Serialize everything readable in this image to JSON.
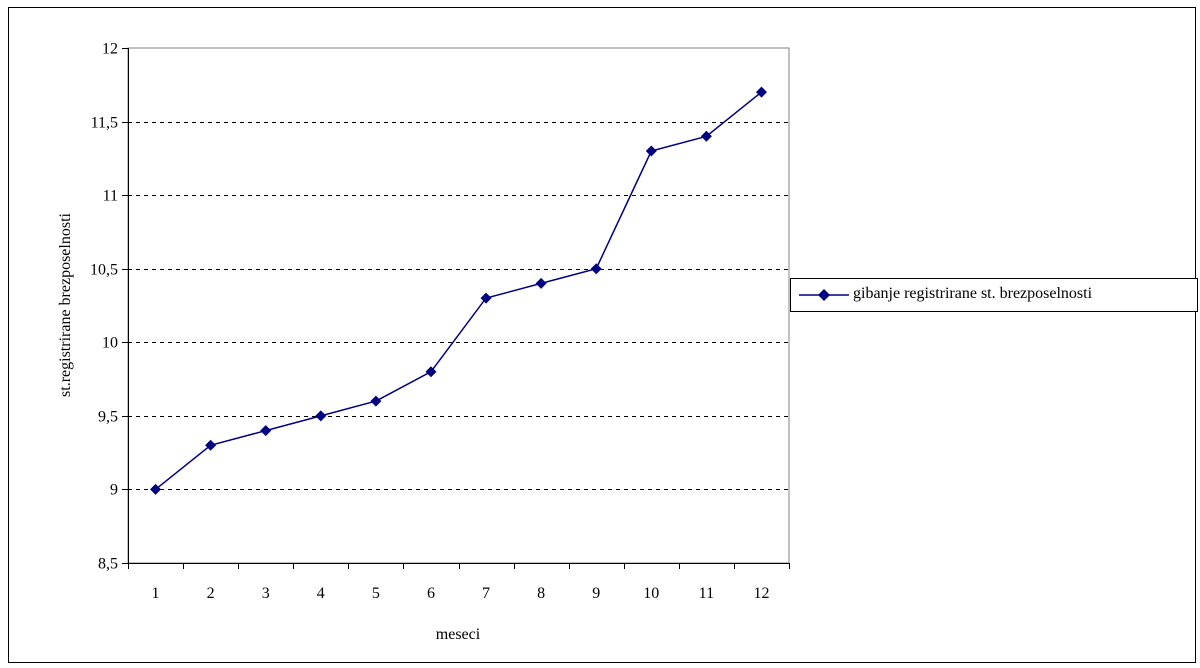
{
  "chart_data": {
    "type": "line",
    "title": "",
    "xlabel": "meseci",
    "ylabel": "st.registrirane brezposelnosti",
    "categories": [
      "1",
      "2",
      "3",
      "4",
      "5",
      "6",
      "7",
      "8",
      "9",
      "10",
      "11",
      "12"
    ],
    "series": [
      {
        "name": "gibanje registrirane st. brezposelnosti",
        "values": [
          9.0,
          9.3,
          9.4,
          9.5,
          9.6,
          9.8,
          10.3,
          10.4,
          10.5,
          11.3,
          11.4,
          11.7
        ],
        "color": "#000080",
        "marker": "diamond"
      }
    ],
    "ylim": [
      8.5,
      12
    ],
    "yticks": [
      8.5,
      9,
      9.5,
      10,
      10.5,
      11,
      11.5,
      12
    ],
    "ytick_labels": [
      "8,5",
      "9",
      "9,5",
      "10",
      "10,5",
      "11",
      "11,5",
      "12"
    ],
    "grid": "horizontal dashed",
    "legend_position": "right"
  }
}
